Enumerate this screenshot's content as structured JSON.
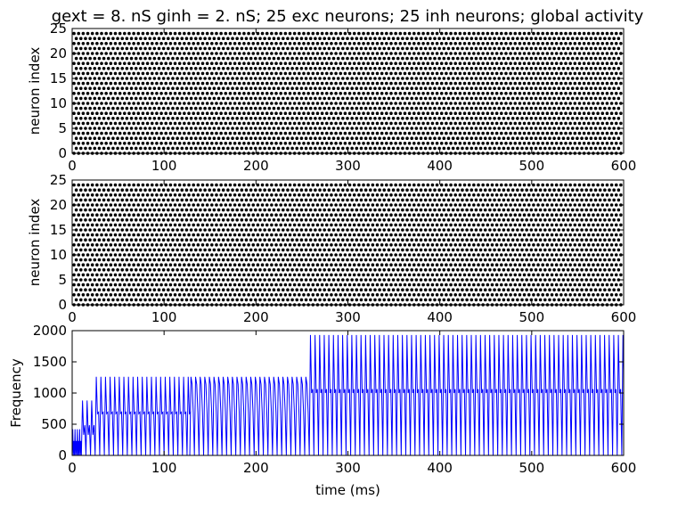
{
  "figure_title": "gext = 8. nS ginh = 2. nS; 25 exc neurons; 25 inh neurons; global activity",
  "chart_data": [
    {
      "type": "scatter",
      "panel": "excitatory raster",
      "title": "",
      "xlabel": "",
      "ylabel": "neuron index",
      "xlim": [
        0,
        600
      ],
      "ylim": [
        0,
        25
      ],
      "x_ticks": [
        "0",
        "100",
        "200",
        "300",
        "400",
        "500",
        "600"
      ],
      "y_ticks": [
        "0",
        "5",
        "10",
        "15",
        "20",
        "25"
      ],
      "n_neurons": 25,
      "spike_interval_ms": 5,
      "first_spike_ms": 2,
      "last_spike_ms": 597,
      "marker_color": "#000000",
      "grid": false
    },
    {
      "type": "scatter",
      "panel": "inhibitory raster",
      "title": "",
      "xlabel": "",
      "ylabel": "neuron index",
      "xlim": [
        0,
        600
      ],
      "ylim": [
        0,
        25
      ],
      "x_ticks": [
        "0",
        "100",
        "200",
        "300",
        "400",
        "500",
        "600"
      ],
      "y_ticks": [
        "0",
        "5",
        "10",
        "15",
        "20",
        "25"
      ],
      "n_neurons": 25,
      "spike_interval_ms": 5,
      "first_spike_ms": 2,
      "last_spike_ms": 597,
      "marker_color": "#000000",
      "grid": false
    },
    {
      "type": "line",
      "panel": "global activity",
      "title": "",
      "xlabel": "time (ms)",
      "ylabel": "Frequency",
      "xlim": [
        0,
        600
      ],
      "ylim": [
        0,
        2000
      ],
      "x_ticks": [
        "0",
        "100",
        "200",
        "300",
        "400",
        "500",
        "600"
      ],
      "y_ticks": [
        "0",
        "500",
        "1000",
        "1500",
        "2000"
      ],
      "line_color": "#0000ff",
      "grid": false,
      "segments": [
        {
          "t_start": 0,
          "t_end": 10,
          "peak": 420,
          "trough": 0,
          "period_ms": 2.5
        },
        {
          "t_start": 10,
          "t_end": 25,
          "peak": 880,
          "trough": 330,
          "period_ms": 5
        },
        {
          "t_start": 25,
          "t_end": 128,
          "peak": 1260,
          "trough": 670,
          "period_ms": 5
        },
        {
          "t_start": 128,
          "t_end": 258,
          "peak": 1260,
          "trough": 1140,
          "period_ms": 5
        },
        {
          "t_start": 258,
          "t_end": 600,
          "peak": 1930,
          "trough": 1000,
          "period_ms": 5
        }
      ]
    }
  ]
}
